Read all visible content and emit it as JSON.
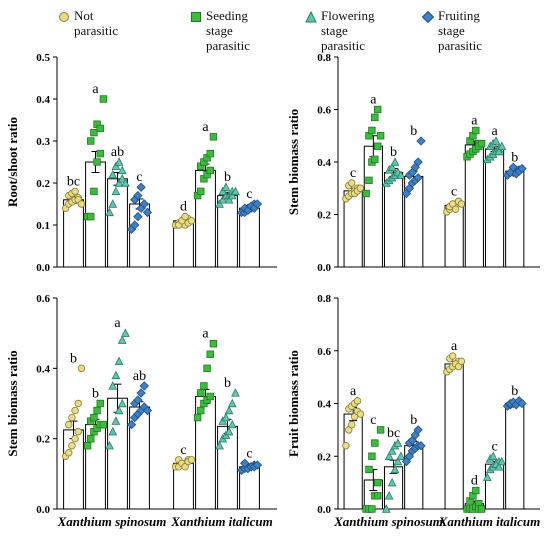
{
  "legend": [
    {
      "label": "Not parasitic",
      "shape": "circle",
      "fill": "#e6dc8c",
      "stroke": "#8a7d2a"
    },
    {
      "label": "Seeding stage\nparasitic",
      "shape": "square",
      "fill": "#3cbc3c",
      "stroke": "#1e7a1e"
    },
    {
      "label": "Flowering stage\nparasitic",
      "shape": "triangle",
      "fill": "#5fc7ae",
      "stroke": "#2a7a66"
    },
    {
      "label": "Fruiting stage\nparasitic",
      "shape": "diamond",
      "fill": "#3f7fc4",
      "stroke": "#1f4f86"
    }
  ],
  "chart_data": [
    {
      "type": "bar",
      "ylabel": "Root/shoot ratio",
      "ylim": [
        0,
        0.5
      ],
      "yticks": [
        "0.0",
        "0.1",
        "0.2",
        "0.3",
        "0.4",
        "0.5"
      ],
      "categories": [
        "Xanthium spinosum",
        "Xanthium italicum"
      ],
      "show_xlabels": false,
      "series": [
        {
          "values": [
            0.16,
            0.11
          ],
          "errors": [
            0.008,
            0.005
          ],
          "letters": [
            "bc",
            "d"
          ]
        },
        {
          "values": [
            0.25,
            0.23
          ],
          "errors": [
            0.025,
            0.015
          ],
          "letters": [
            "a",
            "a"
          ]
        },
        {
          "values": [
            0.21,
            0.17
          ],
          "errors": [
            0.015,
            0.008
          ],
          "letters": [
            "ab",
            "b"
          ]
        },
        {
          "values": [
            0.15,
            0.14
          ],
          "errors": [
            0.012,
            0.005
          ],
          "letters": [
            "c",
            "c"
          ]
        }
      ],
      "points": [
        [
          [
            0.14,
            0.15,
            0.155,
            0.16,
            0.165,
            0.17,
            0.175,
            0.18,
            0.16,
            0.15
          ],
          [
            0.1,
            0.105,
            0.11,
            0.1,
            0.115,
            0.1,
            0.11,
            0.12,
            0.105,
            0.11
          ]
        ],
        [
          [
            0.12,
            0.12,
            0.18,
            0.25,
            0.27,
            0.3,
            0.32,
            0.34,
            0.33,
            0.4
          ],
          [
            0.17,
            0.18,
            0.21,
            0.22,
            0.23,
            0.24,
            0.25,
            0.26,
            0.27,
            0.31
          ]
        ],
        [
          [
            0.13,
            0.15,
            0.18,
            0.2,
            0.21,
            0.22,
            0.24,
            0.25,
            0.23,
            0.2
          ],
          [
            0.15,
            0.16,
            0.17,
            0.17,
            0.18,
            0.18,
            0.19,
            0.16,
            0.17,
            0.18
          ]
        ],
        [
          [
            0.09,
            0.1,
            0.12,
            0.14,
            0.15,
            0.16,
            0.17,
            0.19,
            0.15,
            0.13
          ],
          [
            0.13,
            0.13,
            0.14,
            0.14,
            0.15,
            0.14,
            0.135,
            0.145,
            0.14,
            0.15
          ]
        ]
      ]
    },
    {
      "type": "bar",
      "ylabel": "Stem biomass ratio",
      "ylim": [
        0,
        0.8
      ],
      "yticks": [
        "0.0",
        "0.2",
        "0.4",
        "0.6",
        "0.8"
      ],
      "categories": [
        "Xanthium spinosum",
        "Xanthium italicum"
      ],
      "show_xlabels": false,
      "series": [
        {
          "values": [
            0.29,
            0.235
          ],
          "errors": [
            0.01,
            0.008
          ],
          "letters": [
            "c",
            "c"
          ]
        },
        {
          "values": [
            0.46,
            0.465
          ],
          "errors": [
            0.04,
            0.015
          ],
          "letters": [
            "a",
            "a"
          ]
        },
        {
          "values": [
            0.36,
            0.45
          ],
          "errors": [
            0.015,
            0.01
          ],
          "letters": [
            "b",
            "a"
          ]
        },
        {
          "values": [
            0.345,
            0.365
          ],
          "errors": [
            0.02,
            0.006
          ],
          "letters": [
            "b",
            "b"
          ]
        }
      ],
      "points": [
        [
          [
            0.26,
            0.27,
            0.28,
            0.29,
            0.3,
            0.31,
            0.32,
            0.28,
            0.29,
            0.3
          ],
          [
            0.21,
            0.22,
            0.23,
            0.24,
            0.25,
            0.23,
            0.24,
            0.22,
            0.25,
            0.24
          ]
        ],
        [
          [
            0.28,
            0.33,
            0.4,
            0.41,
            0.46,
            0.5,
            0.52,
            0.57,
            0.6,
            0.5
          ],
          [
            0.42,
            0.43,
            0.44,
            0.45,
            0.47,
            0.48,
            0.5,
            0.52,
            0.46,
            0.47
          ]
        ],
        [
          [
            0.32,
            0.33,
            0.34,
            0.35,
            0.36,
            0.37,
            0.38,
            0.4,
            0.36,
            0.35
          ],
          [
            0.41,
            0.42,
            0.43,
            0.44,
            0.45,
            0.46,
            0.47,
            0.48,
            0.44,
            0.46
          ]
        ],
        [
          [
            0.28,
            0.3,
            0.32,
            0.33,
            0.34,
            0.35,
            0.36,
            0.38,
            0.4,
            0.48
          ],
          [
            0.35,
            0.36,
            0.36,
            0.37,
            0.37,
            0.36,
            0.38,
            0.355,
            0.365,
            0.375
          ]
        ]
      ]
    },
    {
      "type": "bar",
      "ylabel": "Stem biomass ratio",
      "ylim": [
        0,
        0.6
      ],
      "yticks": [
        "0.0",
        "0.2",
        "0.4",
        "0.6"
      ],
      "categories": [
        "Xanthium spinosum",
        "Xanthium italicum"
      ],
      "show_xlabels": true,
      "series": [
        {
          "values": [
            0.225,
            0.13
          ],
          "errors": [
            0.025,
            0.006
          ],
          "letters": [
            "b",
            "c"
          ]
        },
        {
          "values": [
            0.24,
            0.32
          ],
          "errors": [
            0.015,
            0.02
          ],
          "letters": [
            "b",
            "a"
          ]
        },
        {
          "values": [
            0.315,
            0.235
          ],
          "errors": [
            0.04,
            0.02
          ],
          "letters": [
            "a",
            "b"
          ]
        },
        {
          "values": [
            0.29,
            0.12
          ],
          "errors": [
            0.015,
            0.004
          ],
          "letters": [
            "ab",
            "c"
          ]
        }
      ],
      "points": [
        [
          [
            0.15,
            0.16,
            0.18,
            0.2,
            0.22,
            0.24,
            0.26,
            0.28,
            0.3,
            0.4
          ],
          [
            0.12,
            0.12,
            0.13,
            0.13,
            0.14,
            0.14,
            0.13,
            0.12,
            0.135,
            0.14
          ]
        ],
        [
          [
            0.18,
            0.2,
            0.22,
            0.23,
            0.24,
            0.25,
            0.26,
            0.28,
            0.3,
            0.24
          ],
          [
            0.26,
            0.28,
            0.3,
            0.31,
            0.32,
            0.33,
            0.35,
            0.4,
            0.44,
            0.47
          ]
        ],
        [
          [
            0.18,
            0.22,
            0.25,
            0.28,
            0.3,
            0.35,
            0.38,
            0.42,
            0.48,
            0.5
          ],
          [
            0.18,
            0.2,
            0.21,
            0.22,
            0.24,
            0.25,
            0.26,
            0.28,
            0.3,
            0.33
          ]
        ],
        [
          [
            0.24,
            0.26,
            0.27,
            0.28,
            0.29,
            0.3,
            0.31,
            0.33,
            0.35,
            0.28
          ],
          [
            0.11,
            0.115,
            0.12,
            0.12,
            0.125,
            0.13,
            0.115,
            0.12,
            0.12,
            0.125
          ]
        ]
      ]
    },
    {
      "type": "bar",
      "ylabel": "Fruit biomass ratio",
      "ylim": [
        0,
        0.8
      ],
      "yticks": [
        "0.0",
        "0.2",
        "0.4",
        "0.6",
        "0.8"
      ],
      "categories": [
        "Xanthium spinosum",
        "Xanthium italicum"
      ],
      "show_xlabels": true,
      "series": [
        {
          "values": [
            0.36,
            0.55
          ],
          "errors": [
            0.025,
            0.01
          ],
          "letters": [
            "a",
            "a"
          ]
        },
        {
          "values": [
            0.11,
            0.02
          ],
          "errors": [
            0.04,
            0.01
          ],
          "letters": [
            "c",
            "d"
          ]
        },
        {
          "values": [
            0.16,
            0.17
          ],
          "errors": [
            0.025,
            0.01
          ],
          "letters": [
            "bc",
            "c"
          ]
        },
        {
          "values": [
            0.24,
            0.4
          ],
          "errors": [
            0.015,
            0.005
          ],
          "letters": [
            "b",
            "b"
          ]
        }
      ],
      "points": [
        [
          [
            0.24,
            0.3,
            0.32,
            0.35,
            0.37,
            0.38,
            0.39,
            0.4,
            0.41,
            0.36
          ],
          [
            0.52,
            0.53,
            0.54,
            0.55,
            0.56,
            0.57,
            0.58,
            0.55,
            0.54,
            0.56
          ]
        ],
        [
          [
            0.0,
            0.0,
            0.0,
            0.05,
            0.1,
            0.15,
            0.2,
            0.25,
            0.05,
            0.3
          ],
          [
            0.0,
            0.0,
            0.0,
            0.01,
            0.02,
            0.03,
            0.05,
            0.07,
            0.0,
            0.0
          ]
        ],
        [
          [
            0.0,
            0.05,
            0.1,
            0.15,
            0.18,
            0.2,
            0.22,
            0.24,
            0.25,
            0.2
          ],
          [
            0.12,
            0.15,
            0.16,
            0.17,
            0.18,
            0.19,
            0.2,
            0.17,
            0.16,
            0.18
          ]
        ],
        [
          [
            0.18,
            0.2,
            0.22,
            0.23,
            0.24,
            0.25,
            0.26,
            0.28,
            0.3,
            0.24
          ],
          [
            0.39,
            0.395,
            0.4,
            0.4,
            0.41,
            0.4,
            0.405,
            0.395,
            0.41,
            0.4
          ]
        ]
      ]
    }
  ]
}
